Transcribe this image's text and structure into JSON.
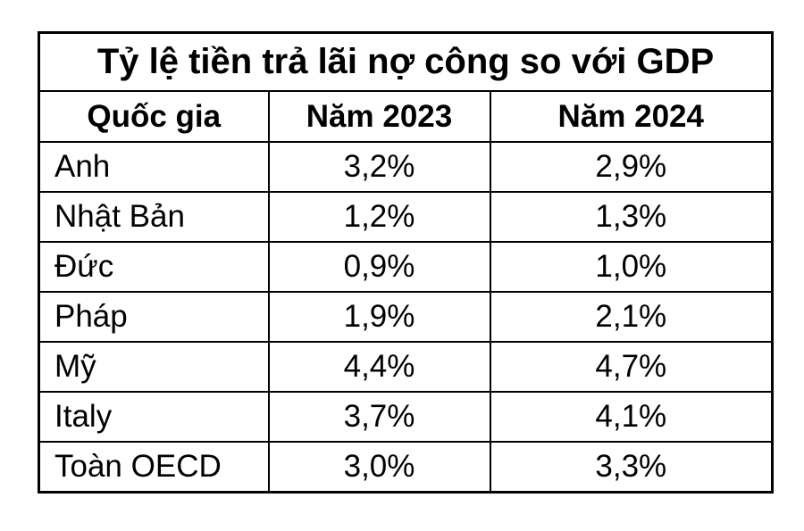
{
  "table": {
    "title": "Tỷ lệ tiền trả lãi nợ công so với GDP",
    "headers": {
      "country": "Quốc gia",
      "y2023": "Năm 2023",
      "y2024": "Năm 2024"
    },
    "rows": [
      {
        "country": "Anh",
        "y2023": "3,2%",
        "y2024": "2,9%"
      },
      {
        "country": "Nhật Bản",
        "y2023": "1,2%",
        "y2024": "1,3%"
      },
      {
        "country": "Đức",
        "y2023": "0,9%",
        "y2024": "1,0%"
      },
      {
        "country": "Pháp",
        "y2023": "1,9%",
        "y2024": "2,1%"
      },
      {
        "country": "Mỹ",
        "y2023": "4,4%",
        "y2024": "4,7%"
      },
      {
        "country": "Italy",
        "y2023": "3,7%",
        "y2024": "4,1%"
      },
      {
        "country": "Toàn OECD",
        "y2023": "3,0%",
        "y2024": "3,3%"
      }
    ],
    "colors": {
      "border": "#000000",
      "text": "#000000",
      "background": "#ffffff"
    }
  },
  "chart_data": {
    "type": "table",
    "title": "Tỷ lệ tiền trả lãi nợ công so với GDP",
    "columns": [
      "Quốc gia",
      "Năm 2023",
      "Năm 2024"
    ],
    "categories": [
      "Anh",
      "Nhật Bản",
      "Đức",
      "Pháp",
      "Mỹ",
      "Italy",
      "Toàn OECD"
    ],
    "series": [
      {
        "name": "Năm 2023",
        "values": [
          3.2,
          1.2,
          0.9,
          1.9,
          4.4,
          3.7,
          3.0
        ],
        "unit": "% GDP"
      },
      {
        "name": "Năm 2024",
        "values": [
          2.9,
          1.3,
          1.0,
          2.1,
          4.7,
          4.1,
          3.3
        ],
        "unit": "% GDP"
      }
    ],
    "value_format": "comma-decimal-percent"
  }
}
